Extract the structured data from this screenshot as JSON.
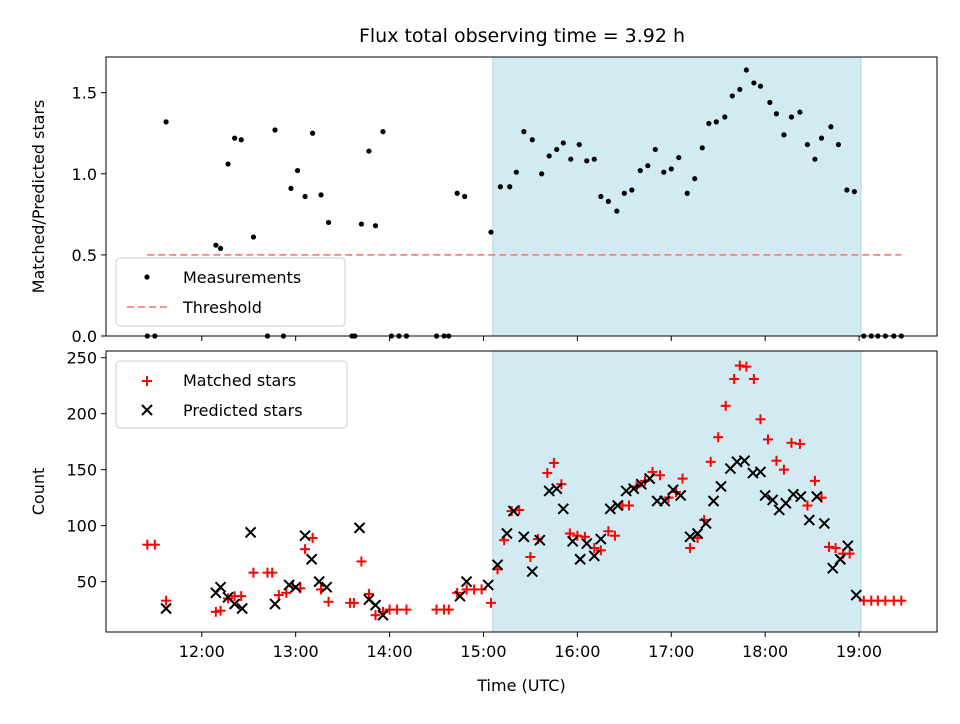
{
  "title": "Flux total observing time = 3.92 h",
  "colors": {
    "measurements": "#000000",
    "threshold": "#ff7f7f",
    "matched": "#ff0000",
    "predicted": "#000000",
    "shade": "#add8e6"
  },
  "chart_data": [
    {
      "type": "scatter",
      "ylabel": "Matched/Predicted stars",
      "ylim": [
        0,
        1.72
      ],
      "xlim": [
        10.98,
        19.83
      ],
      "yticks": [
        0.0,
        0.5,
        1.0,
        1.5
      ],
      "ytick_labels": [
        "0.0",
        "0.5",
        "1.0",
        "1.5"
      ],
      "shaded_region": [
        15.1,
        19.02
      ],
      "legend": {
        "placement": "lower-left",
        "entries": [
          "Measurements",
          "Threshold"
        ]
      },
      "series": [
        {
          "name": "Measurements",
          "marker": "dot",
          "points": [
            [
              11.42,
              0
            ],
            [
              11.5,
              0
            ],
            [
              11.62,
              1.32
            ],
            [
              12.15,
              0.56
            ],
            [
              12.2,
              0.54
            ],
            [
              12.28,
              1.06
            ],
            [
              12.35,
              1.22
            ],
            [
              12.42,
              1.21
            ],
            [
              12.55,
              0.61
            ],
            [
              12.7,
              0
            ],
            [
              12.78,
              1.27
            ],
            [
              12.87,
              0
            ],
            [
              12.95,
              0.91
            ],
            [
              13.02,
              1.02
            ],
            [
              13.1,
              0.86
            ],
            [
              13.18,
              1.25
            ],
            [
              13.27,
              0.87
            ],
            [
              13.35,
              0.7
            ],
            [
              13.6,
              0
            ],
            [
              13.63,
              0
            ],
            [
              13.7,
              0.69
            ],
            [
              13.78,
              1.14
            ],
            [
              13.85,
              0.68
            ],
            [
              13.93,
              1.26
            ],
            [
              14.02,
              0
            ],
            [
              14.1,
              0
            ],
            [
              14.18,
              0
            ],
            [
              14.5,
              0
            ],
            [
              14.58,
              0
            ],
            [
              14.63,
              0
            ],
            [
              14.72,
              0.88
            ],
            [
              14.8,
              0.86
            ],
            [
              15.08,
              0.64
            ],
            [
              15.18,
              0.92
            ],
            [
              15.28,
              0.92
            ],
            [
              15.35,
              1.01
            ],
            [
              15.43,
              1.26
            ],
            [
              15.52,
              1.21
            ],
            [
              15.62,
              1.0
            ],
            [
              15.7,
              1.11
            ],
            [
              15.78,
              1.15
            ],
            [
              15.85,
              1.19
            ],
            [
              15.93,
              1.09
            ],
            [
              16.02,
              1.18
            ],
            [
              16.1,
              1.08
            ],
            [
              16.18,
              1.09
            ],
            [
              16.25,
              0.86
            ],
            [
              16.33,
              0.83
            ],
            [
              16.42,
              0.77
            ],
            [
              16.5,
              0.88
            ],
            [
              16.58,
              0.9
            ],
            [
              16.67,
              1.02
            ],
            [
              16.75,
              1.05
            ],
            [
              16.83,
              1.15
            ],
            [
              16.92,
              1.01
            ],
            [
              17.0,
              1.03
            ],
            [
              17.08,
              1.1
            ],
            [
              17.17,
              0.88
            ],
            [
              17.25,
              0.97
            ],
            [
              17.33,
              1.16
            ],
            [
              17.4,
              1.31
            ],
            [
              17.48,
              1.32
            ],
            [
              17.57,
              1.35
            ],
            [
              17.65,
              1.48
            ],
            [
              17.73,
              1.52
            ],
            [
              17.8,
              1.64
            ],
            [
              17.88,
              1.56
            ],
            [
              17.95,
              1.54
            ],
            [
              18.05,
              1.44
            ],
            [
              18.12,
              1.37
            ],
            [
              18.2,
              1.24
            ],
            [
              18.28,
              1.35
            ],
            [
              18.37,
              1.38
            ],
            [
              18.45,
              1.18
            ],
            [
              18.53,
              1.09
            ],
            [
              18.6,
              1.22
            ],
            [
              18.7,
              1.29
            ],
            [
              18.78,
              1.18
            ],
            [
              18.87,
              0.9
            ],
            [
              18.95,
              0.89
            ],
            [
              19.05,
              0
            ],
            [
              19.13,
              0
            ],
            [
              19.2,
              0
            ],
            [
              19.28,
              0
            ],
            [
              19.37,
              0
            ],
            [
              19.45,
              0
            ]
          ]
        },
        {
          "name": "Threshold",
          "type": "line",
          "x": [
            11.42,
            19.45
          ],
          "y": [
            0.5,
            0.5
          ]
        }
      ]
    },
    {
      "type": "scatter",
      "xlabel": "Time (UTC)",
      "ylabel": "Count",
      "ylim": [
        5,
        256
      ],
      "xlim": [
        10.98,
        19.83
      ],
      "xticks": [
        12,
        13,
        14,
        15,
        16,
        17,
        18,
        19
      ],
      "xtick_labels": [
        "12:00",
        "13:00",
        "14:00",
        "15:00",
        "16:00",
        "17:00",
        "18:00",
        "19:00"
      ],
      "yticks": [
        50,
        100,
        150,
        200,
        250
      ],
      "ytick_labels": [
        "50",
        "100",
        "150",
        "200",
        "250"
      ],
      "shaded_region": [
        15.1,
        19.02
      ],
      "legend": {
        "placement": "upper-left",
        "entries": [
          "Matched stars",
          "Predicted stars"
        ]
      },
      "series": [
        {
          "name": "Matched stars",
          "marker": "plus",
          "points": [
            [
              11.42,
              83
            ],
            [
              11.5,
              83
            ],
            [
              11.62,
              33
            ],
            [
              12.15,
              23
            ],
            [
              12.2,
              24
            ],
            [
              12.28,
              35
            ],
            [
              12.35,
              37
            ],
            [
              12.42,
              37
            ],
            [
              12.55,
              58
            ],
            [
              12.7,
              58
            ],
            [
              12.75,
              58
            ],
            [
              12.82,
              38
            ],
            [
              12.9,
              40
            ],
            [
              12.97,
              46
            ],
            [
              13.05,
              44
            ],
            [
              13.1,
              79
            ],
            [
              13.18,
              89
            ],
            [
              13.27,
              43
            ],
            [
              13.35,
              32
            ],
            [
              13.58,
              31
            ],
            [
              13.62,
              31
            ],
            [
              13.7,
              68
            ],
            [
              13.78,
              39
            ],
            [
              13.85,
              20
            ],
            [
              13.93,
              23
            ],
            [
              14.0,
              25
            ],
            [
              14.08,
              25
            ],
            [
              14.18,
              25
            ],
            [
              14.5,
              25
            ],
            [
              14.58,
              25
            ],
            [
              14.63,
              25
            ],
            [
              14.72,
              40
            ],
            [
              14.82,
              43
            ],
            [
              14.9,
              43
            ],
            [
              14.98,
              43
            ],
            [
              15.08,
              31
            ],
            [
              15.15,
              61
            ],
            [
              15.22,
              87
            ],
            [
              15.3,
              113
            ],
            [
              15.38,
              114
            ],
            [
              15.5,
              72
            ],
            [
              15.58,
              88
            ],
            [
              15.68,
              147
            ],
            [
              15.75,
              156
            ],
            [
              15.83,
              137
            ],
            [
              15.92,
              93
            ],
            [
              16.0,
              91
            ],
            [
              16.08,
              90
            ],
            [
              16.18,
              80
            ],
            [
              16.25,
              78
            ],
            [
              16.33,
              95
            ],
            [
              16.4,
              91
            ],
            [
              16.48,
              118
            ],
            [
              16.55,
              118
            ],
            [
              16.63,
              135
            ],
            [
              16.72,
              140
            ],
            [
              16.8,
              148
            ],
            [
              16.88,
              145
            ],
            [
              16.97,
              125
            ],
            [
              17.05,
              130
            ],
            [
              17.12,
              142
            ],
            [
              17.2,
              80
            ],
            [
              17.28,
              89
            ],
            [
              17.35,
              105
            ],
            [
              17.42,
              157
            ],
            [
              17.5,
              179
            ],
            [
              17.58,
              207
            ],
            [
              17.67,
              231
            ],
            [
              17.73,
              243
            ],
            [
              17.8,
              242
            ],
            [
              17.88,
              231
            ],
            [
              17.95,
              195
            ],
            [
              18.03,
              177
            ],
            [
              18.12,
              158
            ],
            [
              18.2,
              150
            ],
            [
              18.28,
              174
            ],
            [
              18.37,
              173
            ],
            [
              18.45,
              118
            ],
            [
              18.53,
              140
            ],
            [
              18.6,
              125
            ],
            [
              18.68,
              81
            ],
            [
              18.75,
              80
            ],
            [
              18.83,
              75
            ],
            [
              18.9,
              75
            ],
            [
              19.05,
              33
            ],
            [
              19.13,
              33
            ],
            [
              19.2,
              33
            ],
            [
              19.28,
              33
            ],
            [
              19.37,
              33
            ],
            [
              19.45,
              33
            ]
          ]
        },
        {
          "name": "Predicted stars",
          "marker": "x",
          "points": [
            [
              11.62,
              26
            ],
            [
              12.15,
              40
            ],
            [
              12.2,
              45
            ],
            [
              12.28,
              36
            ],
            [
              12.35,
              30
            ],
            [
              12.43,
              26
            ],
            [
              12.52,
              94
            ],
            [
              12.78,
              30
            ],
            [
              12.93,
              47
            ],
            [
              13.0,
              45
            ],
            [
              13.1,
              91
            ],
            [
              13.17,
              70
            ],
            [
              13.25,
              50
            ],
            [
              13.33,
              45
            ],
            [
              13.68,
              98
            ],
            [
              13.78,
              34
            ],
            [
              13.85,
              29
            ],
            [
              13.93,
              20
            ],
            [
              14.75,
              37
            ],
            [
              14.82,
              50
            ],
            [
              15.05,
              47
            ],
            [
              15.15,
              65
            ],
            [
              15.25,
              93
            ],
            [
              15.32,
              113
            ],
            [
              15.43,
              90
            ],
            [
              15.52,
              59
            ],
            [
              15.6,
              87
            ],
            [
              15.7,
              131
            ],
            [
              15.78,
              133
            ],
            [
              15.85,
              115
            ],
            [
              15.95,
              86
            ],
            [
              16.03,
              70
            ],
            [
              16.1,
              84
            ],
            [
              16.18,
              73
            ],
            [
              16.25,
              88
            ],
            [
              16.35,
              115
            ],
            [
              16.43,
              118
            ],
            [
              16.52,
              131
            ],
            [
              16.6,
              133
            ],
            [
              16.68,
              137
            ],
            [
              16.77,
              142
            ],
            [
              16.85,
              122
            ],
            [
              16.93,
              122
            ],
            [
              17.02,
              132
            ],
            [
              17.1,
              127
            ],
            [
              17.2,
              90
            ],
            [
              17.28,
              93
            ],
            [
              17.37,
              102
            ],
            [
              17.45,
              122
            ],
            [
              17.53,
              135
            ],
            [
              17.63,
              151
            ],
            [
              17.7,
              157
            ],
            [
              17.78,
              158
            ],
            [
              17.87,
              147
            ],
            [
              17.95,
              148
            ],
            [
              18.0,
              127
            ],
            [
              18.08,
              123
            ],
            [
              18.15,
              114
            ],
            [
              18.22,
              120
            ],
            [
              18.3,
              128
            ],
            [
              18.38,
              126
            ],
            [
              18.47,
              105
            ],
            [
              18.55,
              126
            ],
            [
              18.63,
              102
            ],
            [
              18.72,
              62
            ],
            [
              18.8,
              70
            ],
            [
              18.88,
              82
            ],
            [
              18.97,
              38
            ]
          ]
        }
      ]
    }
  ]
}
